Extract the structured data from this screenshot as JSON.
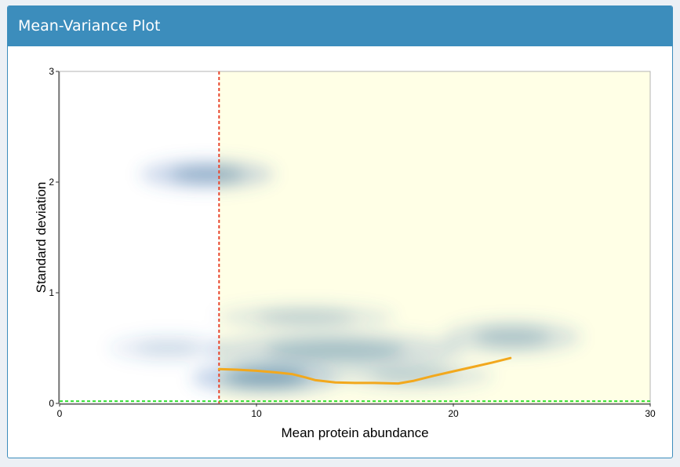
{
  "panel": {
    "title": "Mean-Variance Plot"
  },
  "chart_data": {
    "type": "density",
    "title": "",
    "xlabel": "Mean protein abundance",
    "ylabel": "Standard deviation",
    "xlim": [
      0,
      30
    ],
    "ylim": [
      0,
      3
    ],
    "xticks": [
      0,
      10,
      20,
      30
    ],
    "yticks": [
      0,
      1,
      2,
      3
    ],
    "grid": false,
    "highlight_region": {
      "x_from": 8.1,
      "x_to": 30,
      "color": "#ffffe6"
    },
    "vline": {
      "x": 8.1,
      "color": "#e8452e",
      "style": "dashed"
    },
    "hline": {
      "y": 0.02,
      "color": "#33dd33",
      "style": "dashed"
    },
    "density_clusters": [
      {
        "x": 7.5,
        "y": 2.07,
        "sx": 3.4,
        "sy": 0.13,
        "w": 0.75
      },
      {
        "x": 10.5,
        "y": 0.23,
        "sx": 3.8,
        "sy": 0.14,
        "w": 0.9
      },
      {
        "x": 14,
        "y": 0.48,
        "sx": 6.5,
        "sy": 0.16,
        "w": 0.6
      },
      {
        "x": 12.5,
        "y": 0.78,
        "sx": 4.5,
        "sy": 0.11,
        "w": 0.45
      },
      {
        "x": 23,
        "y": 0.6,
        "sx": 3.5,
        "sy": 0.15,
        "w": 0.55
      },
      {
        "x": 5.5,
        "y": 0.5,
        "sx": 3.0,
        "sy": 0.12,
        "w": 0.3
      },
      {
        "x": 18,
        "y": 0.25,
        "sx": 4.0,
        "sy": 0.12,
        "w": 0.45
      }
    ],
    "trend_line": {
      "color": "#f2a81d",
      "x": [
        8.1,
        9,
        10,
        11,
        11.8,
        12.5,
        13,
        14,
        15,
        16,
        17.2,
        18,
        19,
        20,
        21,
        22,
        22.9
      ],
      "y": [
        0.31,
        0.305,
        0.295,
        0.28,
        0.265,
        0.235,
        0.21,
        0.19,
        0.185,
        0.185,
        0.18,
        0.205,
        0.25,
        0.29,
        0.33,
        0.37,
        0.41
      ]
    }
  }
}
